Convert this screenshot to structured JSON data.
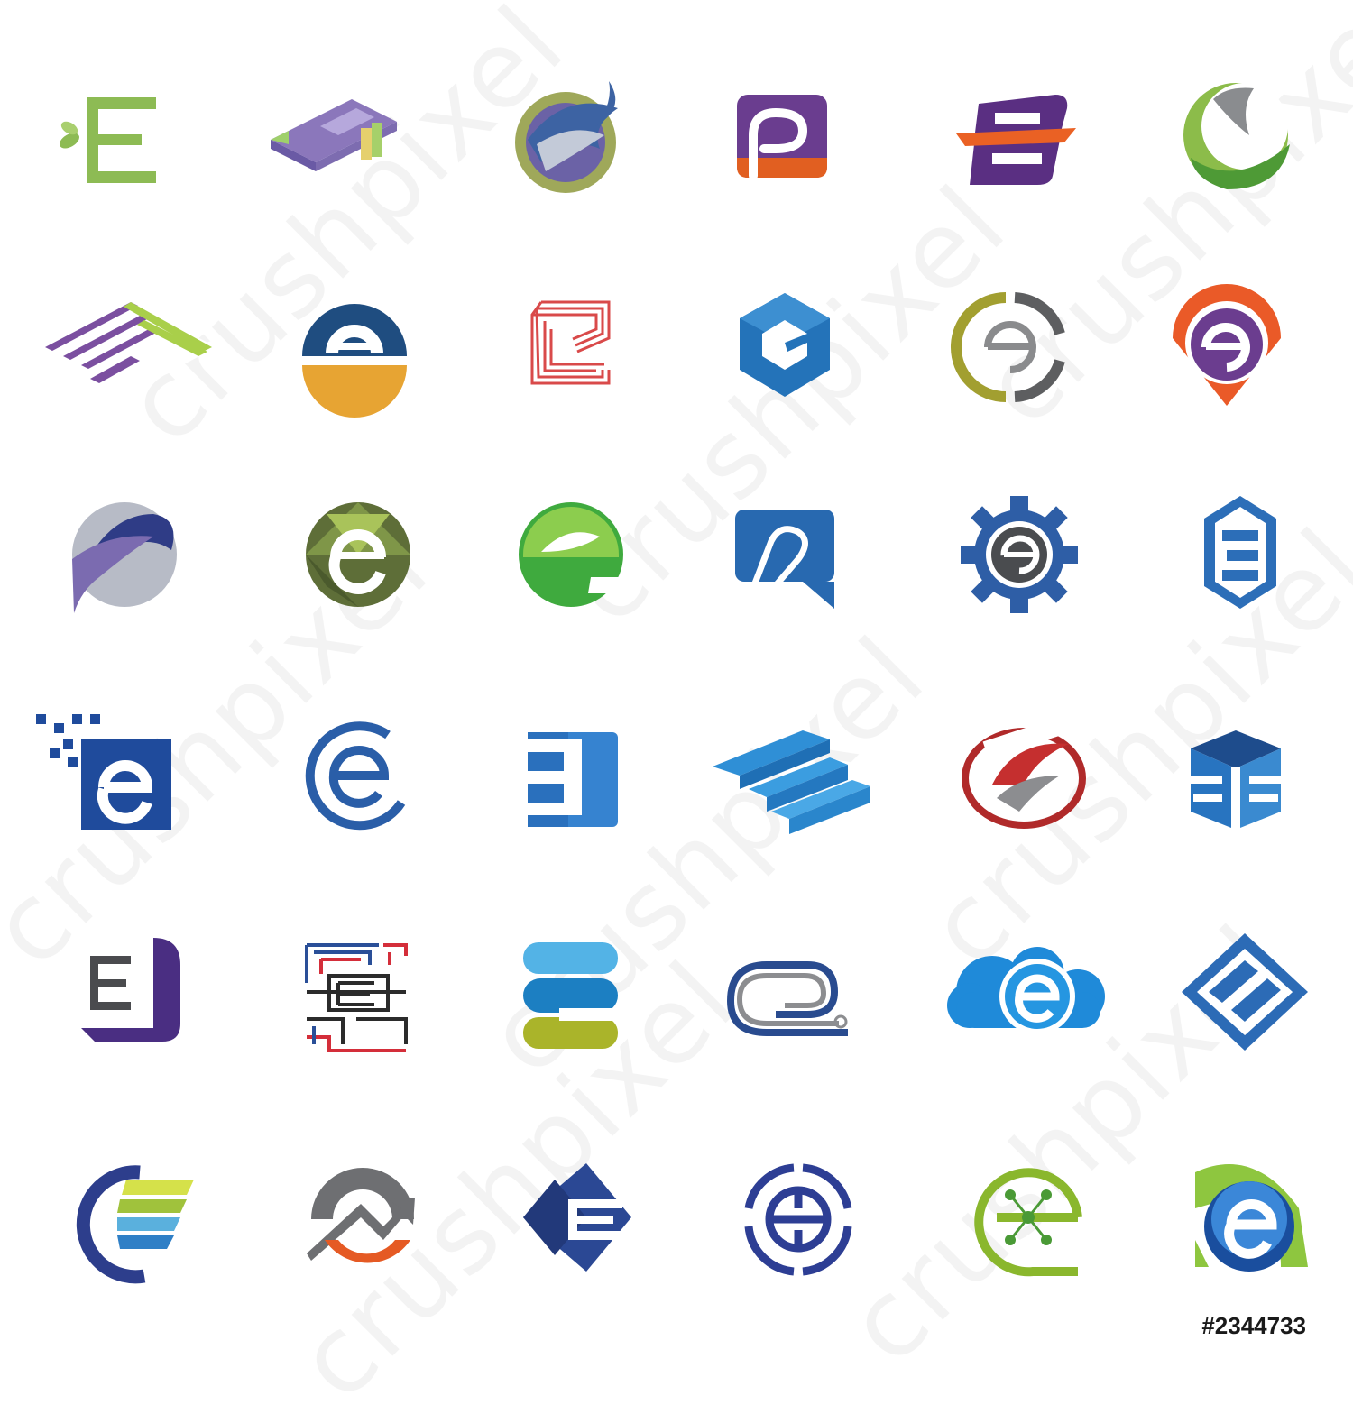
{
  "watermark": {
    "text": "crushpixel"
  },
  "stock_id": "#2344733",
  "logos": [
    {
      "icon": "leaf-letter-e-logo"
    },
    {
      "icon": "isometric-purple-e-logo"
    },
    {
      "icon": "swirl-circle-e-logo"
    },
    {
      "icon": "rounded-square-paperclip-e-logo"
    },
    {
      "icon": "speed-stripe-e-logo"
    },
    {
      "icon": "green-swoosh-sphere-e-logo"
    },
    {
      "icon": "diamond-stripes-e-logo"
    },
    {
      "icon": "half-circle-blue-orange-e-logo"
    },
    {
      "icon": "red-line-maze-e-logo"
    },
    {
      "icon": "blue-hexagon-e-logo"
    },
    {
      "icon": "olive-ring-e-logo"
    },
    {
      "icon": "orange-location-pin-e-logo"
    },
    {
      "icon": "purple-wave-circle-e-logo"
    },
    {
      "icon": "low-poly-green-circle-e-logo"
    },
    {
      "icon": "green-leaf-e-logo"
    },
    {
      "icon": "speech-bubble-e-logo"
    },
    {
      "icon": "gear-e-logo"
    },
    {
      "icon": "hexagon-3-e-logo"
    },
    {
      "icon": "pixel-square-e-logo"
    },
    {
      "icon": "blue-ring-e-logo"
    },
    {
      "icon": "blue-block-3-e-logo"
    },
    {
      "icon": "blue-stairs-e-logo"
    },
    {
      "icon": "red-wing-oval-e-logo"
    },
    {
      "icon": "blue-cube-e-logo"
    },
    {
      "icon": "purple-box-E-logo"
    },
    {
      "icon": "color-maze-E-logo"
    },
    {
      "icon": "stacked-pills-e-logo"
    },
    {
      "icon": "paperclip-cable-e-logo"
    },
    {
      "icon": "blue-cloud-e-logo"
    },
    {
      "icon": "diamond-lines-e-logo"
    },
    {
      "icon": "wing-globe-e-logo"
    },
    {
      "icon": "mountain-arrow-e-logo"
    },
    {
      "icon": "navy-diamond-E-logo"
    },
    {
      "icon": "target-circle-e-logo"
    },
    {
      "icon": "green-node-e-logo"
    },
    {
      "icon": "glossy-blue-e-logo"
    }
  ]
}
